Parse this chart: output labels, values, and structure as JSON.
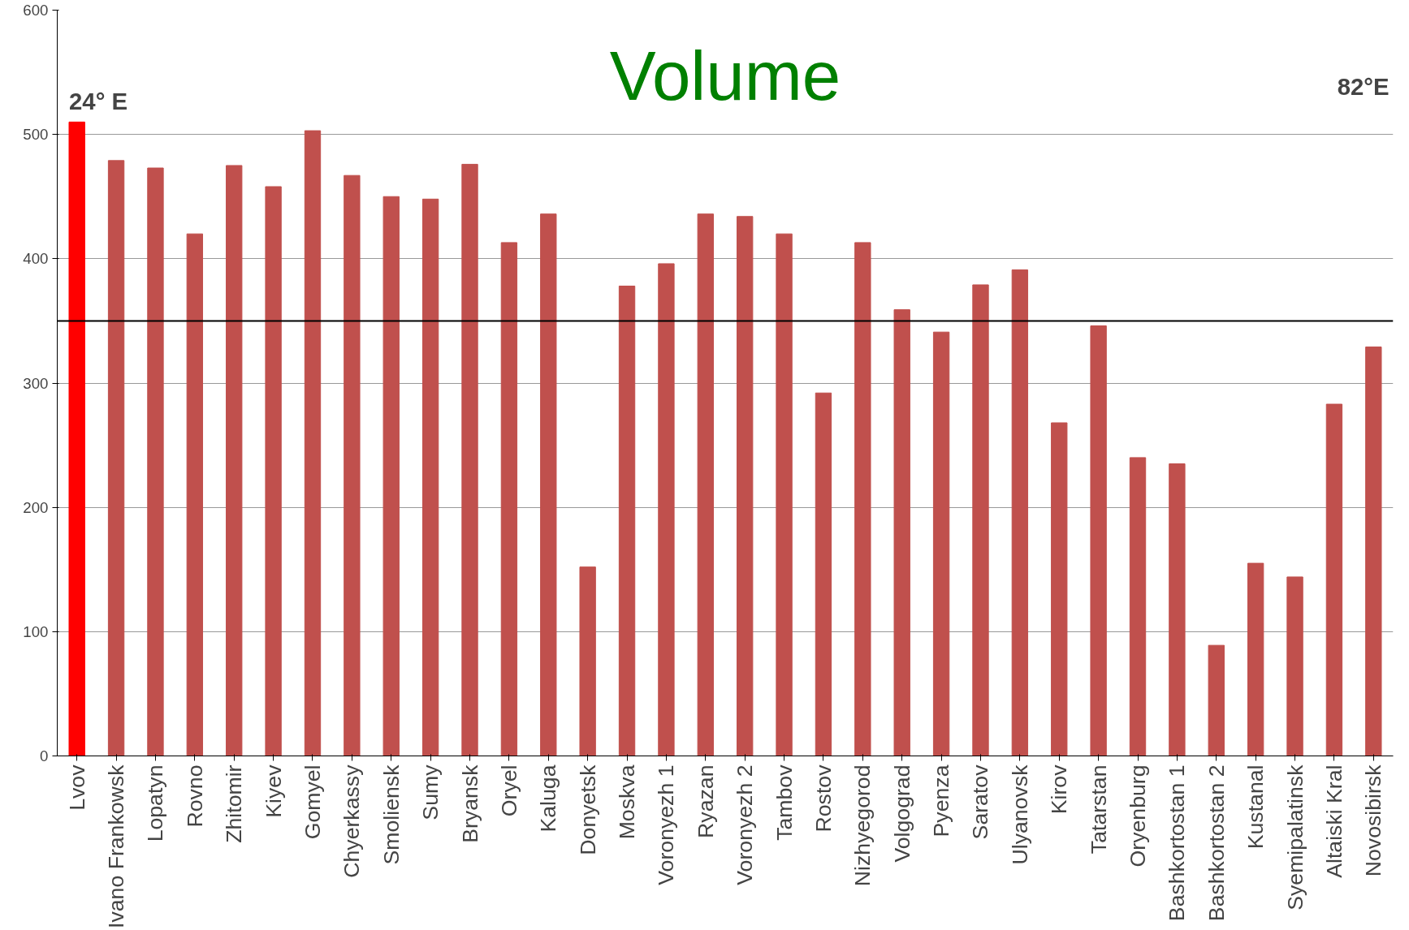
{
  "chart_data": {
    "type": "bar",
    "title": "Volume",
    "categories": [
      "Lvov",
      "Ivano Frankowsk",
      "Lopatyn",
      "Rovno",
      "Zhitomir",
      "Kiyev",
      "Gomyel",
      "Chyerkassy",
      "Smoliensk",
      "Sumy",
      "Bryansk",
      "Oryel",
      "Kaluga",
      "Donyetsk",
      "Moskva",
      "Voronyezh 1",
      "Ryazan",
      "Voronyezh 2",
      "Tambov",
      "Rostov",
      "Nizhyegorod",
      "Volgograd",
      "Pyenza",
      "Saratov",
      "Ulyanovsk",
      "Kirov",
      "Tatarstan",
      "Oryenburg",
      "Bashkortostan 1",
      "Bashkortostan 2",
      "Kustanal",
      "Syemipalatinsk",
      "Altaiski Kral",
      "Novosibirsk"
    ],
    "values": [
      510,
      479,
      473,
      420,
      475,
      458,
      503,
      467,
      450,
      448,
      476,
      413,
      436,
      152,
      378,
      396,
      436,
      434,
      420,
      292,
      413,
      359,
      341,
      379,
      391,
      268,
      346,
      240,
      235,
      89,
      155,
      144,
      283,
      329
    ],
    "colors": [
      "#ff0000",
      "#c0504d",
      "#c0504d",
      "#c0504d",
      "#c0504d",
      "#c0504d",
      "#c0504d",
      "#c0504d",
      "#c0504d",
      "#c0504d",
      "#c0504d",
      "#c0504d",
      "#c0504d",
      "#c0504d",
      "#c0504d",
      "#c0504d",
      "#c0504d",
      "#c0504d",
      "#c0504d",
      "#c0504d",
      "#c0504d",
      "#c0504d",
      "#c0504d",
      "#c0504d",
      "#c0504d",
      "#c0504d",
      "#c0504d",
      "#c0504d",
      "#c0504d",
      "#c0504d",
      "#c0504d",
      "#c0504d",
      "#c0504d",
      "#c0504d"
    ],
    "ylim": [
      0,
      600
    ],
    "yticks": [
      0,
      100,
      200,
      300,
      400,
      500,
      600
    ],
    "grid": "y",
    "ref_lines": [
      {
        "axis": "y",
        "value": 350,
        "color": "#000000"
      }
    ],
    "annotations": [
      "24° E",
      "82°E"
    ]
  }
}
